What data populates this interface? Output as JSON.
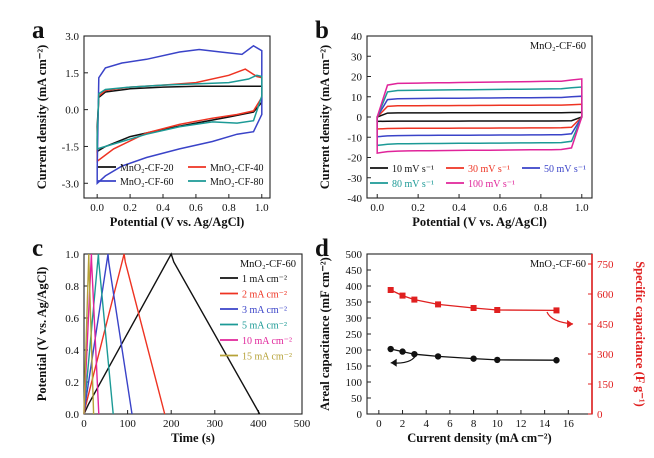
{
  "colors": {
    "black": "#111111",
    "red": "#ee3322",
    "blue": "#3a43c8",
    "teal": "#1c9a96",
    "magenta": "#e0249a",
    "olive": "#b6a238",
    "red_axis": "#e02020"
  },
  "chart_data": [
    {
      "type": "line",
      "panel_label": "a",
      "xlabel": "Potential (V vs. Ag/AgCl)",
      "ylabel": "Current density (mA cm⁻²)",
      "xlim": [
        -0.08,
        1.05
      ],
      "ylim": [
        -3.6,
        3.0
      ],
      "xticks": [
        0.0,
        0.2,
        0.4,
        0.6,
        0.8,
        1.0
      ],
      "xtick_labels": [
        "0.0",
        "0.2",
        "0.4",
        "0.6",
        "0.8",
        "1.0"
      ],
      "yticks": [
        -3.0,
        -1.5,
        0.0,
        1.5,
        3.0
      ],
      "ytick_labels": [
        "-3.0",
        "-1.5",
        "0.0",
        "1.5",
        "3.0"
      ],
      "legend_columns": 2,
      "series": [
        {
          "name": "MnO₂-CF-20",
          "color": "black",
          "upper": [
            [
              0.0,
              -0.7
            ],
            [
              0.01,
              0.5
            ],
            [
              0.05,
              0.72
            ],
            [
              0.2,
              0.85
            ],
            [
              0.4,
              0.92
            ],
            [
              0.6,
              0.95
            ],
            [
              0.8,
              0.95
            ],
            [
              0.95,
              0.95
            ],
            [
              1.0,
              0.95
            ]
          ],
          "lower": [
            [
              1.0,
              0.3
            ],
            [
              0.95,
              -0.1
            ],
            [
              0.8,
              -0.3
            ],
            [
              0.6,
              -0.55
            ],
            [
              0.4,
              -0.8
            ],
            [
              0.2,
              -1.1
            ],
            [
              0.05,
              -1.5
            ],
            [
              0.0,
              -1.7
            ]
          ]
        },
        {
          "name": "MnO₂-CF-40",
          "color": "red",
          "upper": [
            [
              0.0,
              -1.2
            ],
            [
              0.01,
              0.55
            ],
            [
              0.05,
              0.78
            ],
            [
              0.2,
              0.92
            ],
            [
              0.4,
              1.0
            ],
            [
              0.6,
              1.1
            ],
            [
              0.8,
              1.4
            ],
            [
              0.9,
              1.65
            ],
            [
              0.97,
              1.35
            ],
            [
              1.0,
              1.3
            ]
          ],
          "lower": [
            [
              1.0,
              0.5
            ],
            [
              0.95,
              -0.05
            ],
            [
              0.85,
              -0.2
            ],
            [
              0.7,
              -0.35
            ],
            [
              0.5,
              -0.6
            ],
            [
              0.3,
              -0.95
            ],
            [
              0.1,
              -1.6
            ],
            [
              0.0,
              -2.1
            ]
          ]
        },
        {
          "name": "MnO₂-CF-60",
          "color": "blue",
          "upper": [
            [
              0.0,
              -2.4
            ],
            [
              0.01,
              1.3
            ],
            [
              0.05,
              1.7
            ],
            [
              0.15,
              1.9
            ],
            [
              0.3,
              2.05
            ],
            [
              0.5,
              2.35
            ],
            [
              0.62,
              2.45
            ],
            [
              0.75,
              2.35
            ],
            [
              0.88,
              2.25
            ],
            [
              0.95,
              2.6
            ],
            [
              1.0,
              2.4
            ]
          ],
          "lower": [
            [
              1.0,
              -0.2
            ],
            [
              0.95,
              -0.9
            ],
            [
              0.85,
              -1.0
            ],
            [
              0.7,
              -1.3
            ],
            [
              0.5,
              -1.6
            ],
            [
              0.3,
              -1.95
            ],
            [
              0.15,
              -2.3
            ],
            [
              0.05,
              -2.7
            ],
            [
              0.0,
              -3.0
            ]
          ]
        },
        {
          "name": "MnO₂-CF-80",
          "color": "teal",
          "upper": [
            [
              0.0,
              -1.1
            ],
            [
              0.01,
              0.65
            ],
            [
              0.05,
              0.82
            ],
            [
              0.2,
              0.92
            ],
            [
              0.4,
              1.0
            ],
            [
              0.6,
              1.05
            ],
            [
              0.8,
              1.1
            ],
            [
              0.92,
              1.25
            ],
            [
              0.97,
              1.4
            ],
            [
              1.0,
              1.35
            ]
          ],
          "lower": [
            [
              1.0,
              0.55
            ],
            [
              0.95,
              -0.45
            ],
            [
              0.85,
              -0.55
            ],
            [
              0.7,
              -0.5
            ],
            [
              0.5,
              -0.7
            ],
            [
              0.3,
              -1.0
            ],
            [
              0.1,
              -1.4
            ],
            [
              0.0,
              -1.6
            ]
          ]
        }
      ]
    },
    {
      "type": "line",
      "panel_label": "b",
      "annotation": "MnO₂-CF-60",
      "xlabel": "Potential (V vs. Ag/AgCl)",
      "ylabel": "Current density (mA cm⁻²)",
      "xlim": [
        -0.05,
        1.05
      ],
      "ylim": [
        -40,
        40
      ],
      "xticks": [
        0.0,
        0.2,
        0.4,
        0.6,
        0.8,
        1.0
      ],
      "xtick_labels": [
        "0.0",
        "0.2",
        "0.4",
        "0.6",
        "0.8",
        "1.0"
      ],
      "yticks": [
        -40,
        -30,
        -20,
        -10,
        0,
        10,
        20,
        30,
        40
      ],
      "ytick_labels": [
        "-40",
        "-30",
        "-20",
        "-10",
        "0",
        "10",
        "20",
        "30",
        "40"
      ],
      "legend_columns": 3,
      "series": [
        {
          "name": "10 mV s⁻¹",
          "color": "black",
          "amp": 2.0
        },
        {
          "name": "30 mV s⁻¹",
          "color": "red",
          "amp": 5.5
        },
        {
          "name": "50 mV s⁻¹",
          "color": "blue",
          "amp": 9.0
        },
        {
          "name": "80 mV s⁻¹",
          "color": "teal",
          "amp": 13.0
        },
        {
          "name": "100 mV s⁻¹",
          "color": "magenta",
          "amp": 16.5
        }
      ]
    },
    {
      "type": "line",
      "panel_label": "c",
      "annotation": "MnO₂-CF-60",
      "xlabel": "Time (s)",
      "ylabel": "Potential (V vs. Ag/AgCl)",
      "xlim": [
        0,
        500
      ],
      "ylim": [
        0,
        1.0
      ],
      "xticks": [
        0,
        100,
        200,
        300,
        400,
        500
      ],
      "xtick_labels": [
        "0",
        "100",
        "200",
        "300",
        "400",
        "500"
      ],
      "yticks": [
        0.0,
        0.2,
        0.4,
        0.6,
        0.8,
        1.0
      ],
      "ytick_labels": [
        "0.0",
        "0.2",
        "0.4",
        "0.6",
        "0.8",
        "1.0"
      ],
      "legend_columns": 1,
      "series": [
        {
          "name": "1 mA cm⁻²",
          "color": "black",
          "peak": 200,
          "end": 403
        },
        {
          "name": "2 mA cm⁻²",
          "color": "red",
          "peak": 92,
          "end": 185
        },
        {
          "name": "3 mA cm⁻²",
          "color": "blue",
          "peak": 55,
          "end": 110
        },
        {
          "name": "5 mA cm⁻²",
          "color": "teal",
          "peak": 33,
          "end": 67
        },
        {
          "name": "10 mA cm⁻²",
          "color": "magenta",
          "peak": 17,
          "end": 34
        },
        {
          "name": "15 mA cm⁻²",
          "color": "olive",
          "peak": 11,
          "end": 22
        }
      ]
    },
    {
      "type": "scatter",
      "panel_label": "d",
      "annotation": "MnO₂-CF-60",
      "xlabel": "Current density (mA cm⁻²)",
      "ylabel": "Areal capacitance (mF cm⁻²)",
      "ylabel_right": "Specific capacitance (F g⁻¹)",
      "xlim": [
        -1,
        18
      ],
      "ylim": [
        0,
        500
      ],
      "ylim_right": [
        0,
        800
      ],
      "xticks": [
        0,
        2,
        4,
        6,
        8,
        10,
        12,
        14,
        16
      ],
      "xtick_labels": [
        "0",
        "2",
        "4",
        "6",
        "8",
        "10",
        "12",
        "14",
        "16"
      ],
      "yticks": [
        0,
        50,
        100,
        150,
        200,
        250,
        300,
        350,
        400,
        450,
        500
      ],
      "ytick_labels": [
        "0",
        "50",
        "100",
        "150",
        "200",
        "250",
        "300",
        "350",
        "400",
        "450",
        "500"
      ],
      "yticks_right": [
        0,
        150,
        300,
        450,
        600,
        750
      ],
      "ytick_labels_right": [
        "0",
        "150",
        "300",
        "450",
        "600",
        "750"
      ],
      "x": [
        1,
        2,
        3,
        5,
        8,
        10,
        15
      ],
      "series": [
        {
          "name": "Areal capacitance",
          "axis": "left",
          "color": "black",
          "values": [
            203,
            195,
            187,
            180,
            173,
            169,
            168
          ]
        },
        {
          "name": "Specific capacitance",
          "axis": "right",
          "color": "red",
          "values": [
            620,
            592,
            572,
            548,
            530,
            520,
            518
          ]
        }
      ]
    }
  ]
}
